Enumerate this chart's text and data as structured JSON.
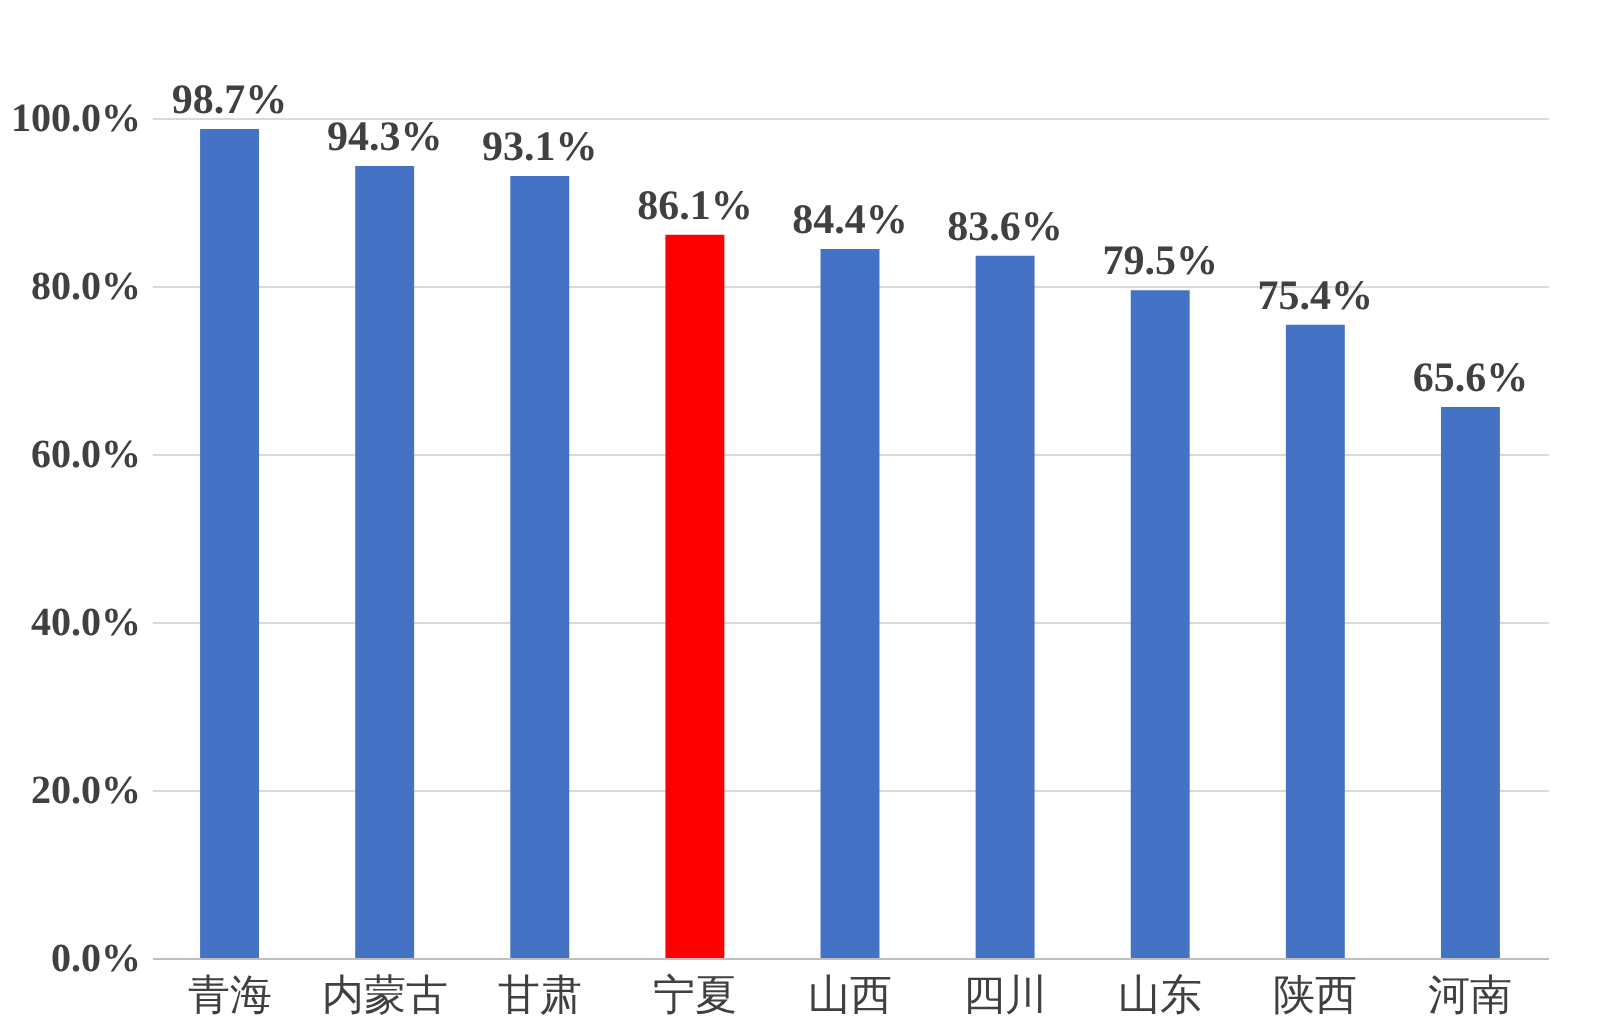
{
  "chart_data": {
    "type": "bar",
    "categories": [
      "青海",
      "内蒙古",
      "甘肃",
      "宁夏",
      "山西",
      "四川",
      "山东",
      "陕西",
      "河南"
    ],
    "values": [
      98.7,
      94.3,
      93.1,
      86.1,
      84.4,
      83.6,
      79.5,
      75.4,
      65.6
    ],
    "colors": [
      "#4472c4",
      "#4472c4",
      "#4472c4",
      "#ff0000",
      "#4472c4",
      "#4472c4",
      "#4472c4",
      "#4472c4",
      "#4472c4"
    ],
    "value_labels": [
      "98.7%",
      "94.3%",
      "93.1%",
      "86.1%",
      "84.4%",
      "83.6%",
      "79.5%",
      "75.4%",
      "65.6%"
    ],
    "ylim": [
      0,
      100
    ],
    "yticks": [
      {
        "value": 0,
        "label": "0.0%"
      },
      {
        "value": 20,
        "label": "20.0%"
      },
      {
        "value": 40,
        "label": "40.0%"
      },
      {
        "value": 60,
        "label": "60.0%"
      },
      {
        "value": 80,
        "label": "80.0%"
      },
      {
        "value": 100,
        "label": "100.0%"
      }
    ],
    "grid": "y"
  }
}
